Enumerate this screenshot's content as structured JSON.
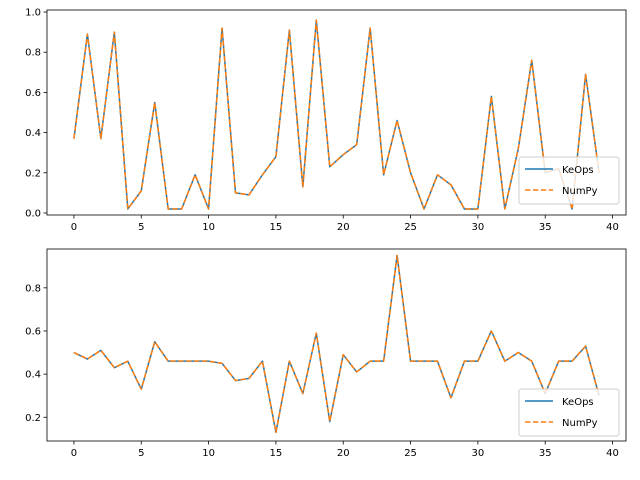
{
  "chart_data": [
    {
      "type": "line",
      "xlim": [
        -2,
        41
      ],
      "ylim": [
        -0.01,
        1.01
      ],
      "xticks": [
        0,
        5,
        10,
        15,
        20,
        25,
        30,
        35,
        40
      ],
      "yticks": [
        0.0,
        0.2,
        0.4,
        0.6,
        0.8,
        1.0
      ],
      "xtick_labels": [
        "0",
        "5",
        "10",
        "15",
        "20",
        "25",
        "30",
        "35",
        "40"
      ],
      "ytick_labels": [
        "0.0",
        "0.2",
        "0.4",
        "0.6",
        "0.8",
        "1.0"
      ],
      "legend_placement": "lower-right",
      "x": [
        0,
        1,
        2,
        3,
        4,
        5,
        6,
        7,
        8,
        9,
        10,
        11,
        12,
        13,
        14,
        15,
        16,
        17,
        18,
        19,
        20,
        21,
        22,
        23,
        24,
        25,
        26,
        27,
        28,
        29,
        30,
        31,
        32,
        33,
        34,
        35,
        36,
        37,
        38,
        39
      ],
      "series": [
        {
          "name": "KeOps",
          "color": "#1f77b4",
          "style": "solid",
          "values": [
            0.37,
            0.89,
            0.37,
            0.9,
            0.02,
            0.11,
            0.55,
            0.02,
            0.02,
            0.19,
            0.02,
            0.92,
            0.1,
            0.09,
            0.19,
            0.28,
            0.91,
            0.13,
            0.96,
            0.23,
            0.29,
            0.34,
            0.92,
            0.19,
            0.46,
            0.2,
            0.02,
            0.19,
            0.14,
            0.02,
            0.02,
            0.58,
            0.02,
            0.32,
            0.76,
            0.2,
            0.22,
            0.02,
            0.69,
            0.2
          ]
        },
        {
          "name": "NumPy",
          "color": "#ff7f0e",
          "style": "dashed",
          "values": [
            0.37,
            0.89,
            0.37,
            0.9,
            0.02,
            0.11,
            0.55,
            0.02,
            0.02,
            0.19,
            0.02,
            0.92,
            0.1,
            0.09,
            0.19,
            0.28,
            0.91,
            0.13,
            0.96,
            0.23,
            0.29,
            0.34,
            0.92,
            0.19,
            0.46,
            0.2,
            0.02,
            0.19,
            0.14,
            0.02,
            0.02,
            0.58,
            0.02,
            0.32,
            0.76,
            0.2,
            0.22,
            0.02,
            0.69,
            0.2
          ]
        }
      ]
    },
    {
      "type": "line",
      "xlim": [
        -2,
        41
      ],
      "ylim": [
        0.09,
        0.98
      ],
      "xticks": [
        0,
        5,
        10,
        15,
        20,
        25,
        30,
        35,
        40
      ],
      "yticks": [
        0.2,
        0.4,
        0.6,
        0.8
      ],
      "xtick_labels": [
        "0",
        "5",
        "10",
        "15",
        "20",
        "25",
        "30",
        "35",
        "40"
      ],
      "ytick_labels": [
        "0.2",
        "0.4",
        "0.6",
        "0.8"
      ],
      "legend_placement": "lower-right",
      "x": [
        0,
        1,
        2,
        3,
        4,
        5,
        6,
        7,
        8,
        9,
        10,
        11,
        12,
        13,
        14,
        15,
        16,
        17,
        18,
        19,
        20,
        21,
        22,
        23,
        24,
        25,
        26,
        27,
        28,
        29,
        30,
        31,
        32,
        33,
        34,
        35,
        36,
        37,
        38,
        39
      ],
      "series": [
        {
          "name": "KeOps",
          "color": "#1f77b4",
          "style": "solid",
          "values": [
            0.5,
            0.47,
            0.51,
            0.43,
            0.46,
            0.33,
            0.55,
            0.46,
            0.46,
            0.46,
            0.46,
            0.45,
            0.37,
            0.38,
            0.46,
            0.13,
            0.46,
            0.31,
            0.59,
            0.18,
            0.49,
            0.41,
            0.46,
            0.46,
            0.95,
            0.46,
            0.46,
            0.46,
            0.29,
            0.46,
            0.46,
            0.6,
            0.46,
            0.5,
            0.46,
            0.31,
            0.46,
            0.46,
            0.53,
            0.3
          ]
        },
        {
          "name": "NumPy",
          "color": "#ff7f0e",
          "style": "dashed",
          "values": [
            0.5,
            0.47,
            0.51,
            0.43,
            0.46,
            0.33,
            0.55,
            0.46,
            0.46,
            0.46,
            0.46,
            0.45,
            0.37,
            0.38,
            0.46,
            0.13,
            0.46,
            0.31,
            0.59,
            0.18,
            0.49,
            0.41,
            0.46,
            0.46,
            0.95,
            0.46,
            0.46,
            0.46,
            0.29,
            0.46,
            0.46,
            0.6,
            0.46,
            0.5,
            0.46,
            0.31,
            0.46,
            0.46,
            0.53,
            0.3
          ]
        }
      ]
    }
  ]
}
